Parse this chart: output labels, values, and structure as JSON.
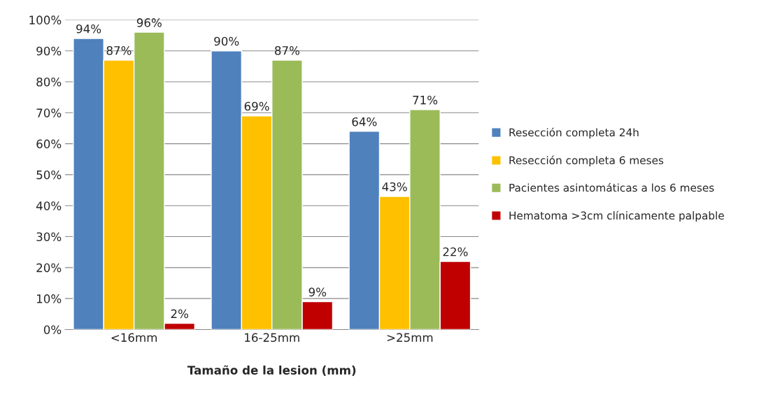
{
  "chart_data": {
    "type": "bar",
    "xlabel": "Tamaño de la lesion (mm)",
    "categories": [
      "<16mm",
      "16-25mm",
      ">25mm"
    ],
    "series": [
      {
        "name": "Resección completa 24h",
        "color": "#4f81bd",
        "values": [
          94,
          90,
          64
        ],
        "value_labels": [
          "94%",
          "90%",
          "64%"
        ]
      },
      {
        "name": "Resección completa 6 meses",
        "color": "#ffc000",
        "values": [
          87,
          69,
          43
        ],
        "value_labels": [
          "87%",
          "69%",
          "43%"
        ]
      },
      {
        "name": "Pacientes asintomáticas a los 6 meses",
        "color": "#9bbb59",
        "values": [
          96,
          87,
          71
        ],
        "value_labels": [
          "96%",
          "87%",
          "71%"
        ]
      },
      {
        "name": "Hematoma >3cm clínicamente palpable",
        "color": "#c00000",
        "values": [
          2,
          9,
          22
        ],
        "value_labels": [
          "2%",
          "9%",
          "22%"
        ]
      }
    ],
    "ylim": [
      0,
      100
    ],
    "yticks": [
      {
        "value": 0,
        "label": "0%"
      },
      {
        "value": 10,
        "label": "10%"
      },
      {
        "value": 20,
        "label": "20%"
      },
      {
        "value": 30,
        "label": "30%"
      },
      {
        "value": 40,
        "label": "40%"
      },
      {
        "value": 50,
        "label": "50%"
      },
      {
        "value": 60,
        "label": "60%"
      },
      {
        "value": 70,
        "label": "70%"
      },
      {
        "value": 80,
        "label": "80%"
      },
      {
        "value": 90,
        "label": "90%"
      },
      {
        "value": 100,
        "label": "100%"
      }
    ],
    "grid": "y",
    "legend": "right"
  }
}
